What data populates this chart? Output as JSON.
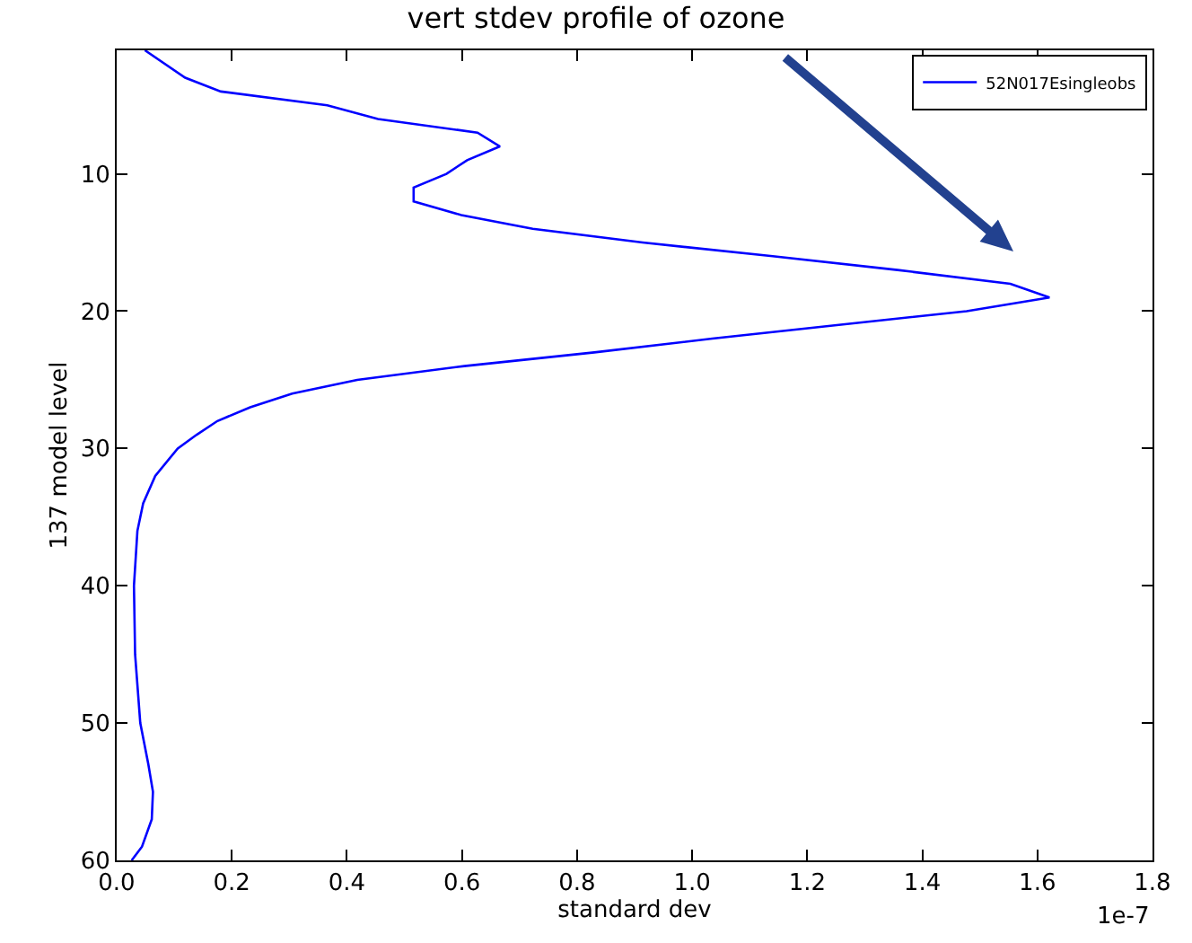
{
  "chart_data": {
    "type": "line",
    "title": "vert stdev profile of ozone",
    "xlabel": "standard dev",
    "ylabel": "137 model level",
    "annotations": [
      "1e-7"
    ],
    "xlim": [
      0,
      1.8
    ],
    "xticks": [
      {
        "value": 0,
        "label": "0.0"
      },
      {
        "value": 0.2,
        "label": "0.2"
      },
      {
        "value": 0.4,
        "label": "0.4"
      },
      {
        "value": 0.6,
        "label": "0.6"
      },
      {
        "value": 0.8,
        "label": "0.8"
      },
      {
        "value": 1,
        "label": "1.0"
      },
      {
        "value": 1.2,
        "label": "1.2"
      },
      {
        "value": 1.4,
        "label": "1.4"
      },
      {
        "value": 1.6,
        "label": "1.6"
      },
      {
        "value": 1.8,
        "label": "1.8"
      }
    ],
    "ylim": [
      60,
      1
    ],
    "yticks": [
      10,
      20,
      30,
      40,
      50,
      60
    ],
    "legend": "top right",
    "marker": "none",
    "line_style": "solid",
    "series": [
      {
        "name": "52N017Esingleobs",
        "color": "#0000ff",
        "x": [
          0.049,
          0.119,
          0.181,
          0.366,
          0.454,
          0.627,
          0.666,
          0.609,
          0.573,
          0.516,
          0.516,
          0.599,
          0.723,
          0.914,
          1.14,
          1.357,
          1.553,
          1.621,
          1.477,
          1.255,
          1.035,
          0.83,
          0.604,
          0.418,
          0.305,
          0.232,
          0.175,
          0.139,
          0.106,
          0.067,
          0.046,
          0.036,
          0.03,
          0.032,
          0.041,
          0.055,
          0.063,
          0.061,
          0.044,
          0.026
        ],
        "values": [
          1,
          3,
          4,
          5,
          6,
          7,
          8,
          9,
          10,
          11,
          12,
          13,
          14,
          15,
          16,
          17,
          18,
          19,
          20,
          21,
          22,
          23,
          24,
          25,
          26,
          27,
          28,
          29,
          30,
          32,
          34,
          36,
          40,
          45,
          50,
          53,
          55,
          57,
          59,
          60
        ]
      }
    ]
  }
}
